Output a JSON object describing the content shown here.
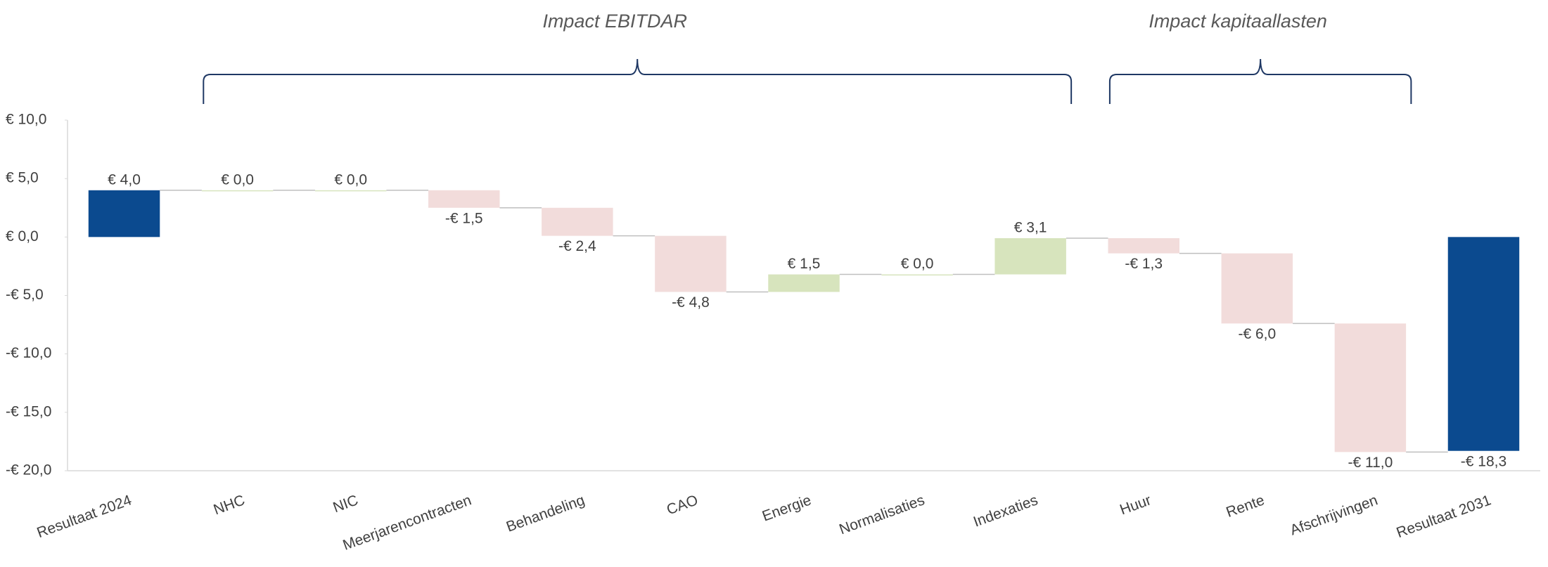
{
  "chart_data": {
    "type": "waterfall",
    "categories": [
      "Resultaat 2024",
      "NHC",
      "NIC",
      "Meerjarencontracten",
      "Behandeling",
      "CAO",
      "Energie",
      "Normalisaties",
      "Indexaties",
      "Huur",
      "Rente",
      "Afschrijvingen",
      "Resultaat 2031"
    ],
    "values": [
      4.0,
      0.0,
      0.0,
      -1.5,
      -2.4,
      -4.8,
      1.5,
      0.0,
      3.1,
      -1.3,
      -6.0,
      -11.0,
      -18.3
    ],
    "value_labels": [
      "€ 4,0",
      "€ 0,0",
      "€ 0,0",
      "-€ 1,5",
      "-€ 2,4",
      "-€ 4,8",
      "€ 1,5",
      "€ 0,0",
      "€ 3,1",
      "-€ 1,3",
      "-€ 6,0",
      "-€ 11,0",
      "-€ 18,3"
    ],
    "measures": [
      "absolute",
      "relative",
      "relative",
      "relative",
      "relative",
      "relative",
      "relative",
      "relative",
      "relative",
      "relative",
      "relative",
      "relative",
      "absolute"
    ],
    "colors": {
      "total": "#0b4a8f",
      "increase": "#d7e4bd",
      "decrease": "#f2dcdb"
    },
    "ylim": [
      -20,
      10
    ],
    "yticks": [
      {
        "value": -20,
        "label": "-€ 20,0"
      },
      {
        "value": -15,
        "label": "-€ 15,0"
      },
      {
        "value": -10,
        "label": "-€ 10,0"
      },
      {
        "value": -5,
        "label": "-€ 5,0"
      },
      {
        "value": 0,
        "label": "€ 0,0"
      },
      {
        "value": 5,
        "label": "€ 5,0"
      },
      {
        "value": 10,
        "label": "€ 10,0"
      }
    ],
    "annotations": [
      {
        "text": "Impact EBITDAR",
        "from": "NHC",
        "to": "Indexaties"
      },
      {
        "text": "Impact kapitaallasten",
        "from": "Huur",
        "to": "Afschrijvingen"
      }
    ]
  }
}
